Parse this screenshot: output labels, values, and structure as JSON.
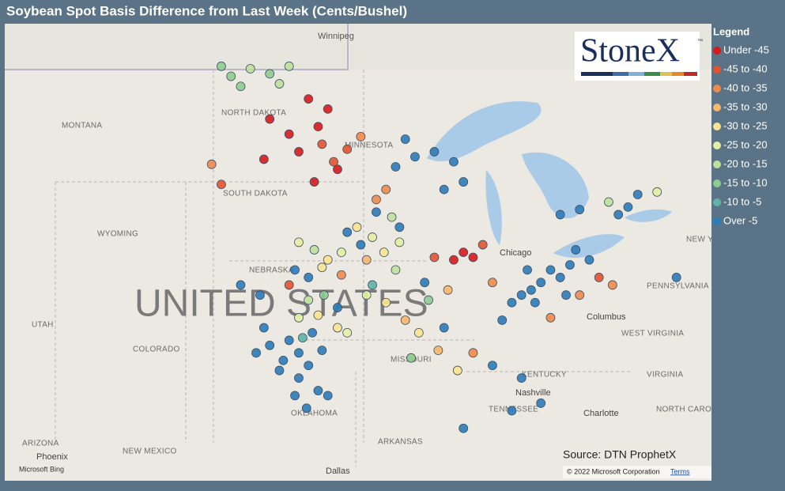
{
  "header": {
    "title": "Soybean Spot Basis Difference from Last Week (Cents/Bushel)"
  },
  "legend": {
    "title": "Legend",
    "items": [
      {
        "label": "Under -45",
        "color": "#d7191c"
      },
      {
        "label": "-45 to -40",
        "color": "#e4532f"
      },
      {
        "label": "-40 to -35",
        "color": "#f08a4b"
      },
      {
        "label": "-35 to -30",
        "color": "#f6b66c"
      },
      {
        "label": "-30 to -25",
        "color": "#fbe38f"
      },
      {
        "label": "-25 to -20",
        "color": "#e4efa2"
      },
      {
        "label": "-20 to -15",
        "color": "#bfe09b"
      },
      {
        "label": "-15 to -10",
        "color": "#8fcc8f"
      },
      {
        "label": "-10 to -5",
        "color": "#5fb2a6"
      },
      {
        "label": "Over -5",
        "color": "#2c7bb9"
      }
    ]
  },
  "logo": {
    "text": "StoneX",
    "mark": "™"
  },
  "source": "Source: DTN ProphetX",
  "copyright": "© 2022 Microsoft Corporation",
  "terms": "Terms",
  "provider": "Microsoft Bing",
  "map": {
    "labels": [
      "Winnipeg",
      "NORTH DAKOTA",
      "MONTANA",
      "MINNESOTA",
      "SOUTH DAKOTA",
      "WYOMING",
      "NEBRASKA",
      "UNITED STATES",
      "UTAH",
      "COLORADO",
      "MISSOURI",
      "KENTUCKY",
      "TENNESSEE",
      "ARKANSAS",
      "OKLAHOMA",
      "NEW MEXICO",
      "ARIZONA",
      "Phoenix",
      "Dallas",
      "Nashville",
      "Charlotte",
      "Columbus",
      "Chicago",
      "WEST VIRGINIA",
      "VIRGINIA",
      "PENNSYLVANIA",
      "NEW YORK",
      "NORTH CAROLINA"
    ],
    "points": [
      {
        "lon": -98.5,
        "lat": 38,
        "bin": 9
      },
      {
        "lon": -98,
        "lat": 37.5,
        "bin": 9
      },
      {
        "lon": -97.5,
        "lat": 37,
        "bin": 9
      },
      {
        "lon": -98,
        "lat": 36.5,
        "bin": 9
      },
      {
        "lon": -97,
        "lat": 36,
        "bin": 9
      },
      {
        "lon": -98.8,
        "lat": 37.2,
        "bin": 9
      },
      {
        "lon": -99.5,
        "lat": 37.8,
        "bin": 9
      },
      {
        "lon": -97.3,
        "lat": 38.3,
        "bin": 9
      },
      {
        "lon": -96.8,
        "lat": 37.6,
        "bin": 9
      },
      {
        "lon": -98.2,
        "lat": 35.8,
        "bin": 9
      },
      {
        "lon": -99,
        "lat": 36.8,
        "bin": 9
      },
      {
        "lon": -97.6,
        "lat": 35.3,
        "bin": 9
      },
      {
        "lon": -99.8,
        "lat": 38.5,
        "bin": 9
      },
      {
        "lon": -100.2,
        "lat": 37.5,
        "bin": 9
      },
      {
        "lon": -96.5,
        "lat": 35.8,
        "bin": 9
      },
      {
        "lon": -86,
        "lat": 40,
        "bin": 9
      },
      {
        "lon": -85.5,
        "lat": 40.3,
        "bin": 9
      },
      {
        "lon": -86.5,
        "lat": 39.8,
        "bin": 9
      },
      {
        "lon": -85,
        "lat": 40.8,
        "bin": 9
      },
      {
        "lon": -84.5,
        "lat": 40.5,
        "bin": 9
      },
      {
        "lon": -86.2,
        "lat": 40.8,
        "bin": 9
      },
      {
        "lon": -85.8,
        "lat": 39.5,
        "bin": 9
      },
      {
        "lon": -84,
        "lat": 41,
        "bin": 9
      },
      {
        "lon": -83.7,
        "lat": 41.6,
        "bin": 9
      },
      {
        "lon": -83,
        "lat": 41.2,
        "bin": 9
      },
      {
        "lon": -84.2,
        "lat": 39.8,
        "bin": 9
      },
      {
        "lon": -87,
        "lat": 39.5,
        "bin": 9
      },
      {
        "lon": -87.5,
        "lat": 38.8,
        "bin": 9
      },
      {
        "lon": -84.5,
        "lat": 43,
        "bin": 9
      },
      {
        "lon": -83.5,
        "lat": 43.2,
        "bin": 9
      },
      {
        "lon": -81.5,
        "lat": 43,
        "bin": 9
      },
      {
        "lon": -81,
        "lat": 43.3,
        "bin": 9
      },
      {
        "lon": -80.5,
        "lat": 43.8,
        "bin": 9
      },
      {
        "lon": -92,
        "lat": 45.3,
        "bin": 9
      },
      {
        "lon": -91,
        "lat": 45.5,
        "bin": 9
      },
      {
        "lon": -90,
        "lat": 45.1,
        "bin": 9
      },
      {
        "lon": -92.5,
        "lat": 46,
        "bin": 9
      },
      {
        "lon": -93,
        "lat": 44.9,
        "bin": 9
      },
      {
        "lon": -89.5,
        "lat": 44.3,
        "bin": 9
      },
      {
        "lon": -90.5,
        "lat": 44,
        "bin": 9
      },
      {
        "lon": -95.5,
        "lat": 42.3,
        "bin": 9
      },
      {
        "lon": -94.8,
        "lat": 41.8,
        "bin": 9
      },
      {
        "lon": -94,
        "lat": 43.1,
        "bin": 9
      },
      {
        "lon": -92.8,
        "lat": 42.5,
        "bin": 9
      },
      {
        "lon": -97.5,
        "lat": 40.5,
        "bin": 9
      },
      {
        "lon": -98.2,
        "lat": 40.8,
        "bin": 9
      },
      {
        "lon": -100,
        "lat": 39.8,
        "bin": 9
      },
      {
        "lon": -101,
        "lat": 40.2,
        "bin": 9
      },
      {
        "lon": -96,
        "lat": 39.3,
        "bin": 9
      },
      {
        "lon": -86.5,
        "lat": 36.5,
        "bin": 9
      },
      {
        "lon": -85.5,
        "lat": 35.5,
        "bin": 9
      },
      {
        "lon": -88,
        "lat": 37,
        "bin": 9
      },
      {
        "lon": -89.5,
        "lat": 34.5,
        "bin": 9
      },
      {
        "lon": -87,
        "lat": 35.2,
        "bin": 9
      },
      {
        "lon": -90.5,
        "lat": 38.5,
        "bin": 9
      },
      {
        "lon": -91.5,
        "lat": 40.3,
        "bin": 9
      },
      {
        "lon": -76,
        "lat": 39.7,
        "bin": 9
      },
      {
        "lon": -78.5,
        "lat": 40.5,
        "bin": 9
      },
      {
        "lon": -97,
        "lat": 46.5,
        "bin": 0
      },
      {
        "lon": -96.5,
        "lat": 47.2,
        "bin": 0
      },
      {
        "lon": -97.5,
        "lat": 47.6,
        "bin": 0
      },
      {
        "lon": -98.5,
        "lat": 46.2,
        "bin": 0
      },
      {
        "lon": -99.5,
        "lat": 46.8,
        "bin": 0
      },
      {
        "lon": -98,
        "lat": 45.5,
        "bin": 0
      },
      {
        "lon": -96.8,
        "lat": 45.8,
        "bin": 1
      },
      {
        "lon": -99.8,
        "lat": 45.2,
        "bin": 0
      },
      {
        "lon": -96,
        "lat": 44.8,
        "bin": 0
      },
      {
        "lon": -97.2,
        "lat": 44.3,
        "bin": 0
      },
      {
        "lon": -89.5,
        "lat": 41.5,
        "bin": 0
      },
      {
        "lon": -89,
        "lat": 41.3,
        "bin": 0
      },
      {
        "lon": -88.5,
        "lat": 41.8,
        "bin": 1
      },
      {
        "lon": -90,
        "lat": 41.2,
        "bin": 0
      },
      {
        "lon": -95.5,
        "lat": 45.6,
        "bin": 1
      },
      {
        "lon": -94.8,
        "lat": 46.1,
        "bin": 2
      },
      {
        "lon": -96.2,
        "lat": 45.1,
        "bin": 1
      },
      {
        "lon": -93.5,
        "lat": 44,
        "bin": 2
      },
      {
        "lon": -94,
        "lat": 43.6,
        "bin": 2
      },
      {
        "lon": -91,
        "lat": 41.3,
        "bin": 1
      },
      {
        "lon": -88,
        "lat": 40.3,
        "bin": 2
      },
      {
        "lon": -82.5,
        "lat": 40.5,
        "bin": 1
      },
      {
        "lon": -81.8,
        "lat": 40.2,
        "bin": 2
      },
      {
        "lon": -89,
        "lat": 37.5,
        "bin": 2
      },
      {
        "lon": -95.8,
        "lat": 40.6,
        "bin": 2
      },
      {
        "lon": -98.5,
        "lat": 40.2,
        "bin": 1
      },
      {
        "lon": -102.5,
        "lat": 45,
        "bin": 2
      },
      {
        "lon": -102,
        "lat": 44.2,
        "bin": 1
      },
      {
        "lon": -85,
        "lat": 38.9,
        "bin": 2
      },
      {
        "lon": -83.5,
        "lat": 39.8,
        "bin": 2
      },
      {
        "lon": -95,
        "lat": 42.5,
        "bin": 4
      },
      {
        "lon": -94.2,
        "lat": 42.1,
        "bin": 5
      },
      {
        "lon": -93.6,
        "lat": 41.5,
        "bin": 4
      },
      {
        "lon": -92.8,
        "lat": 41.9,
        "bin": 5
      },
      {
        "lon": -94.5,
        "lat": 41.2,
        "bin": 3
      },
      {
        "lon": -93.2,
        "lat": 42.9,
        "bin": 6
      },
      {
        "lon": -95.8,
        "lat": 41.5,
        "bin": 5
      },
      {
        "lon": -96.5,
        "lat": 41.2,
        "bin": 4
      },
      {
        "lon": -97.2,
        "lat": 41.6,
        "bin": 6
      },
      {
        "lon": -98,
        "lat": 41.9,
        "bin": 5
      },
      {
        "lon": -96.8,
        "lat": 40.9,
        "bin": 4
      },
      {
        "lon": -94.5,
        "lat": 39.8,
        "bin": 5
      },
      {
        "lon": -93.5,
        "lat": 39.5,
        "bin": 4
      },
      {
        "lon": -92.5,
        "lat": 38.8,
        "bin": 3
      },
      {
        "lon": -91.8,
        "lat": 38.3,
        "bin": 4
      },
      {
        "lon": -95.5,
        "lat": 38.3,
        "bin": 5
      },
      {
        "lon": -97,
        "lat": 39,
        "bin": 4
      },
      {
        "lon": -98,
        "lat": 38.9,
        "bin": 5
      },
      {
        "lon": -96,
        "lat": 38.5,
        "bin": 4
      },
      {
        "lon": -90.8,
        "lat": 37.6,
        "bin": 3
      },
      {
        "lon": -89.8,
        "lat": 36.8,
        "bin": 4
      },
      {
        "lon": -90.3,
        "lat": 40,
        "bin": 3
      },
      {
        "lon": -101.5,
        "lat": 48.5,
        "bin": 7
      },
      {
        "lon": -100.5,
        "lat": 48.8,
        "bin": 6
      },
      {
        "lon": -99.5,
        "lat": 48.6,
        "bin": 7
      },
      {
        "lon": -98.5,
        "lat": 48.9,
        "bin": 6
      },
      {
        "lon": -101,
        "lat": 48.1,
        "bin": 7
      },
      {
        "lon": -102,
        "lat": 48.9,
        "bin": 7
      },
      {
        "lon": -99,
        "lat": 48.2,
        "bin": 6
      },
      {
        "lon": -97.5,
        "lat": 39.6,
        "bin": 6
      },
      {
        "lon": -96.7,
        "lat": 39.8,
        "bin": 7
      },
      {
        "lon": -93,
        "lat": 40.8,
        "bin": 6
      },
      {
        "lon": -91.3,
        "lat": 39.6,
        "bin": 7
      },
      {
        "lon": -92.2,
        "lat": 37.3,
        "bin": 7
      },
      {
        "lon": -82,
        "lat": 43.5,
        "bin": 6
      },
      {
        "lon": -79.5,
        "lat": 43.9,
        "bin": 5
      },
      {
        "lon": -75.8,
        "lat": 44.2,
        "bin": 2
      },
      {
        "lon": -97.8,
        "lat": 38.1,
        "bin": 8
      },
      {
        "lon": -94.2,
        "lat": 40.2,
        "bin": 8
      }
    ]
  }
}
